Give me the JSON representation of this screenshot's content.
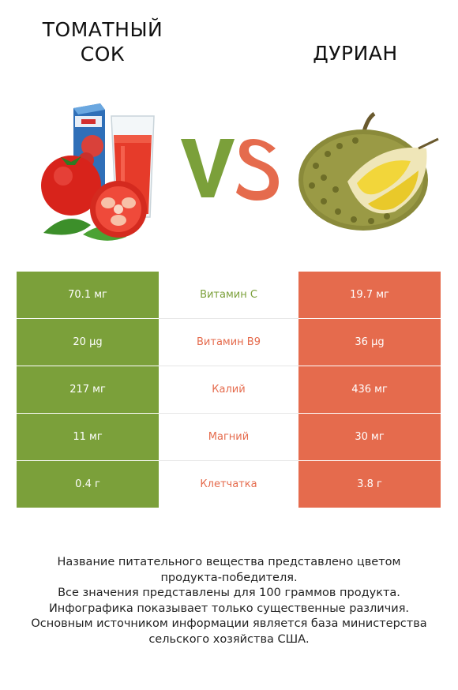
{
  "left_item": {
    "title_line1": "ТОМАТНЫЙ",
    "title_line2": "СОК",
    "image": "tomato-juice-icon"
  },
  "right_item": {
    "title": "ДУРИАН",
    "image": "durian-icon"
  },
  "vs": {
    "letter_v": "V",
    "letter_s": "S",
    "v_color": "#7ba03a",
    "s_color": "#e56b4d"
  },
  "colors": {
    "winner_left": "#7ba03a",
    "winner_right": "#e56b4d"
  },
  "rows": [
    {
      "left": "70.1 мг",
      "nutrient": "Витамин C",
      "right": "19.7 мг",
      "winner": "left"
    },
    {
      "left": "20 µg",
      "nutrient": "Витамин B9",
      "right": "36 µg",
      "winner": "right"
    },
    {
      "left": "217 мг",
      "nutrient": "Калий",
      "right": "436 мг",
      "winner": "right"
    },
    {
      "left": "11 мг",
      "nutrient": "Магний",
      "right": "30 мг",
      "winner": "right"
    },
    {
      "left": "0.4 г",
      "nutrient": "Клетчатка",
      "right": "3.8 г",
      "winner": "right"
    }
  ],
  "footer": {
    "line1": "Название питательного вещества представлено цветом",
    "line2": "продукта-победителя.",
    "line3": "Все значения представлены для 100 граммов продукта.",
    "line4": "Инфографика показывает только существенные различия.",
    "line5": "Основным источником информации является база министерства",
    "line6": "сельского хозяйства США."
  }
}
